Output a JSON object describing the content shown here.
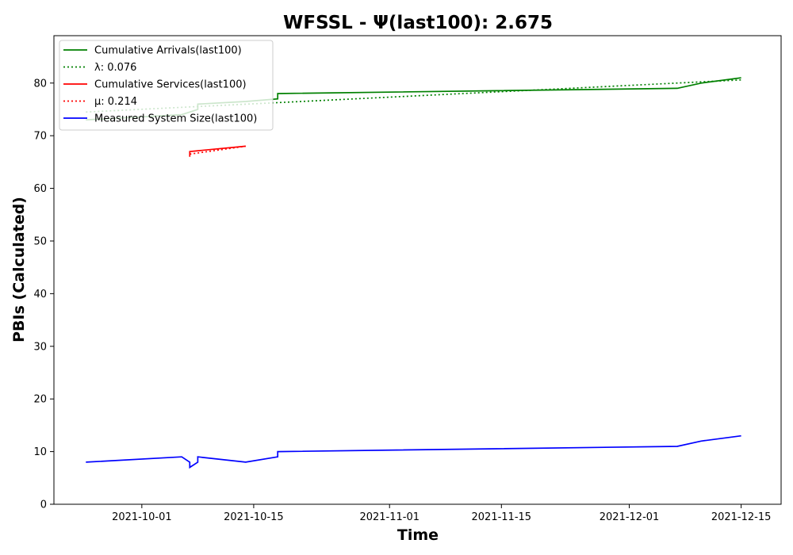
{
  "chart_data": {
    "type": "line",
    "title": "WFSSL -  Ψ(last100): 2.675",
    "xlabel": "Time",
    "ylabel": "PBIs (Calculated)",
    "xlim": [
      "2021-09-20",
      "2021-12-20"
    ],
    "ylim": [
      0,
      89
    ],
    "x_ticks": [
      "2021-10-01",
      "2021-10-15",
      "2021-11-01",
      "2021-11-15",
      "2021-12-01",
      "2021-12-15"
    ],
    "y_ticks": [
      0,
      10,
      20,
      30,
      40,
      50,
      60,
      70,
      80
    ],
    "grid": false,
    "legend_position": "top-left",
    "series": [
      {
        "name": "Cumulative Arrivals(last100)",
        "color": "#008000",
        "style": "solid",
        "x": [
          "2021-09-24",
          "2021-10-06",
          "2021-10-07",
          "2021-10-08",
          "2021-10-08",
          "2021-10-14",
          "2021-10-18",
          "2021-10-18",
          "2021-12-07",
          "2021-12-10",
          "2021-12-15"
        ],
        "y": [
          73,
          74,
          74.5,
          75,
          76,
          76.5,
          77,
          78,
          79,
          80,
          81
        ]
      },
      {
        "name": "λ: 0.076",
        "color": "#008000",
        "style": "dotted",
        "x": [
          "2021-09-24",
          "2021-12-15"
        ],
        "y": [
          74.5,
          80.6
        ]
      },
      {
        "name": "Cumulative Services(last100)",
        "color": "#ff0000",
        "style": "solid",
        "x": [
          "2021-10-07",
          "2021-10-07",
          "2021-10-14"
        ],
        "y": [
          66,
          67,
          68
        ]
      },
      {
        "name": "μ: 0.214",
        "color": "#ff0000",
        "style": "dotted",
        "x": [
          "2021-10-07",
          "2021-10-14"
        ],
        "y": [
          66.5,
          68
        ]
      },
      {
        "name": "Measured System Size(last100)",
        "color": "#0000ff",
        "style": "solid",
        "x": [
          "2021-09-24",
          "2021-10-06",
          "2021-10-07",
          "2021-10-07",
          "2021-10-08",
          "2021-10-08",
          "2021-10-14",
          "2021-10-18",
          "2021-10-18",
          "2021-12-07",
          "2021-12-10",
          "2021-12-15"
        ],
        "y": [
          8,
          9,
          8,
          7,
          8,
          9,
          8,
          9,
          10,
          11,
          12,
          13
        ]
      }
    ]
  }
}
